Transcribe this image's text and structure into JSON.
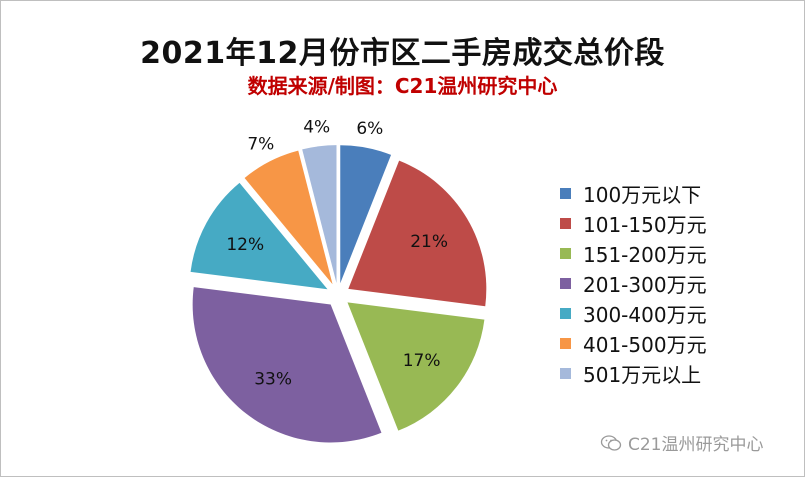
{
  "title": "2021年12月份市区二手房成交总价段",
  "subtitle": "数据来源/制图：C21温州研究中心",
  "watermark": "C21温州研究中心",
  "chart_data": {
    "type": "pie",
    "title": "2021年12月份市区二手房成交总价段",
    "categories": [
      "100万元以下",
      "101-150万元",
      "151-200万元",
      "201-300万元",
      "300-400万元",
      "401-500万元",
      "501万元以上"
    ],
    "values": [
      6,
      21,
      17,
      33,
      12,
      7,
      4
    ],
    "labels": [
      "6%",
      "21%",
      "17%",
      "33%",
      "12%",
      "7%",
      "4%"
    ],
    "colors": [
      "#4a7ebb",
      "#be4b48",
      "#98b954",
      "#7d60a0",
      "#46aac4",
      "#f79646",
      "#a5b9db"
    ],
    "legend": "right",
    "exploded": true
  }
}
